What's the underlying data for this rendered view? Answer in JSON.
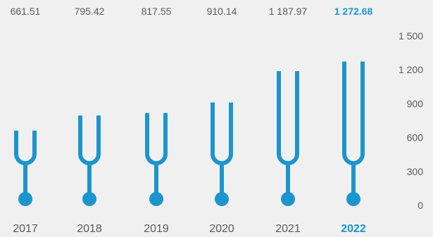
{
  "chart_data": {
    "type": "bar",
    "categories": [
      "2017",
      "2018",
      "2019",
      "2020",
      "2021",
      "2022"
    ],
    "values": [
      661.51,
      795.42,
      817.55,
      910.14,
      1187.97,
      1272.68
    ],
    "value_labels": [
      "661.51",
      "795.42",
      "817.55",
      "910.14",
      "1 187.97",
      "1 272.68"
    ],
    "highlight_index": 5,
    "ylim": [
      0,
      1500
    ],
    "yticks": [
      0,
      300,
      600,
      900,
      1200,
      1500
    ],
    "ytick_labels": [
      "0",
      "300",
      "600",
      "900",
      "1 200",
      "1 500"
    ],
    "grid": false,
    "bar_color": "#1c95cd",
    "highlight_color": "#1c95cd",
    "text_color": "#5a5a5a",
    "background": "#f0f0f0"
  }
}
